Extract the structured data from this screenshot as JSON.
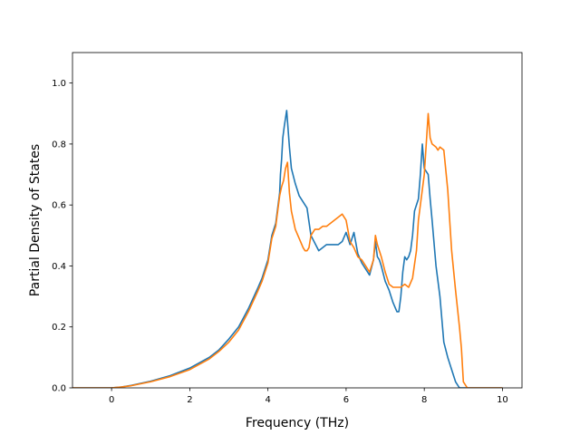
{
  "chart_data": {
    "type": "line",
    "title": "",
    "xlabel": "Frequency (THz)",
    "ylabel": "Partial Density of States",
    "xlim": [
      -1.0,
      10.5
    ],
    "ylim": [
      0.0,
      1.1
    ],
    "xticks": [
      0,
      2,
      4,
      6,
      8,
      10
    ],
    "xtick_labels": [
      "0",
      "2",
      "4",
      "6",
      "8",
      "10"
    ],
    "yticks": [
      0.0,
      0.2,
      0.4,
      0.6,
      0.8,
      1.0
    ],
    "ytick_labels": [
      "0.0",
      "0.2",
      "0.4",
      "0.6",
      "0.8",
      "1.0"
    ],
    "grid": false,
    "legend": "none",
    "series": [
      {
        "color": "#1f77b4",
        "x": [
          -1.0,
          -0.5,
          0.0,
          0.25,
          0.5,
          1.0,
          1.5,
          2.0,
          2.5,
          2.75,
          3.0,
          3.25,
          3.5,
          3.75,
          3.85,
          4.0,
          4.1,
          4.2,
          4.25,
          4.3,
          4.32,
          4.35,
          4.38,
          4.42,
          4.48,
          4.55,
          4.6,
          4.7,
          4.8,
          4.9,
          4.95,
          5.0,
          5.1,
          5.3,
          5.5,
          5.7,
          5.8,
          5.9,
          6.0,
          6.1,
          6.2,
          6.3,
          6.4,
          6.5,
          6.6,
          6.7,
          6.75,
          6.8,
          6.85,
          6.9,
          7.0,
          7.1,
          7.2,
          7.3,
          7.35,
          7.4,
          7.45,
          7.5,
          7.55,
          7.6,
          7.65,
          7.7,
          7.75,
          7.8,
          7.85,
          7.9,
          7.95,
          8.0,
          8.05,
          8.1,
          8.15,
          8.2,
          8.3,
          8.4,
          8.5,
          8.6,
          8.7,
          8.8,
          8.9,
          9.0,
          9.05,
          9.1,
          9.5,
          10.0
        ],
        "y": [
          0.0,
          0.0,
          0.0,
          0.003,
          0.008,
          0.022,
          0.04,
          0.065,
          0.1,
          0.125,
          0.16,
          0.2,
          0.26,
          0.33,
          0.36,
          0.42,
          0.5,
          0.54,
          0.59,
          0.64,
          0.7,
          0.75,
          0.82,
          0.86,
          0.91,
          0.79,
          0.72,
          0.67,
          0.63,
          0.61,
          0.6,
          0.59,
          0.5,
          0.45,
          0.47,
          0.47,
          0.47,
          0.48,
          0.51,
          0.47,
          0.51,
          0.44,
          0.41,
          0.39,
          0.37,
          0.42,
          0.48,
          0.43,
          0.42,
          0.4,
          0.35,
          0.32,
          0.28,
          0.25,
          0.25,
          0.3,
          0.38,
          0.43,
          0.42,
          0.43,
          0.45,
          0.5,
          0.58,
          0.6,
          0.62,
          0.7,
          0.8,
          0.72,
          0.71,
          0.7,
          0.62,
          0.55,
          0.4,
          0.3,
          0.15,
          0.1,
          0.06,
          0.02,
          0.0,
          0.0,
          0.0,
          0.0,
          0.0,
          0.0
        ]
      },
      {
        "color": "#ff7f0e",
        "x": [
          -1.0,
          -0.5,
          0.0,
          0.25,
          0.5,
          1.0,
          1.5,
          2.0,
          2.5,
          2.75,
          3.0,
          3.25,
          3.5,
          3.75,
          3.85,
          4.0,
          4.1,
          4.2,
          4.25,
          4.3,
          4.35,
          4.4,
          4.45,
          4.5,
          4.55,
          4.6,
          4.7,
          4.8,
          4.9,
          4.95,
          5.0,
          5.05,
          5.1,
          5.2,
          5.3,
          5.4,
          5.5,
          5.6,
          5.7,
          5.8,
          5.9,
          6.0,
          6.1,
          6.2,
          6.3,
          6.4,
          6.5,
          6.6,
          6.7,
          6.75,
          6.8,
          6.85,
          6.9,
          7.0,
          7.1,
          7.2,
          7.3,
          7.4,
          7.5,
          7.6,
          7.7,
          7.8,
          7.85,
          7.9,
          7.95,
          8.0,
          8.05,
          8.1,
          8.15,
          8.2,
          8.3,
          8.35,
          8.4,
          8.5,
          8.6,
          8.7,
          8.8,
          8.9,
          8.95,
          9.0,
          9.1,
          9.5,
          10.0
        ],
        "y": [
          0.0,
          0.0,
          0.0,
          0.003,
          0.007,
          0.02,
          0.037,
          0.06,
          0.095,
          0.12,
          0.15,
          0.19,
          0.25,
          0.32,
          0.35,
          0.41,
          0.49,
          0.53,
          0.58,
          0.63,
          0.66,
          0.68,
          0.72,
          0.74,
          0.64,
          0.58,
          0.52,
          0.49,
          0.46,
          0.45,
          0.45,
          0.46,
          0.5,
          0.52,
          0.52,
          0.53,
          0.53,
          0.54,
          0.55,
          0.56,
          0.57,
          0.55,
          0.48,
          0.46,
          0.43,
          0.42,
          0.4,
          0.38,
          0.42,
          0.5,
          0.47,
          0.45,
          0.43,
          0.38,
          0.34,
          0.33,
          0.33,
          0.33,
          0.34,
          0.33,
          0.36,
          0.45,
          0.55,
          0.6,
          0.65,
          0.7,
          0.8,
          0.9,
          0.82,
          0.8,
          0.79,
          0.78,
          0.79,
          0.78,
          0.65,
          0.45,
          0.32,
          0.2,
          0.13,
          0.02,
          0.0,
          0.0,
          0.0
        ]
      }
    ]
  }
}
